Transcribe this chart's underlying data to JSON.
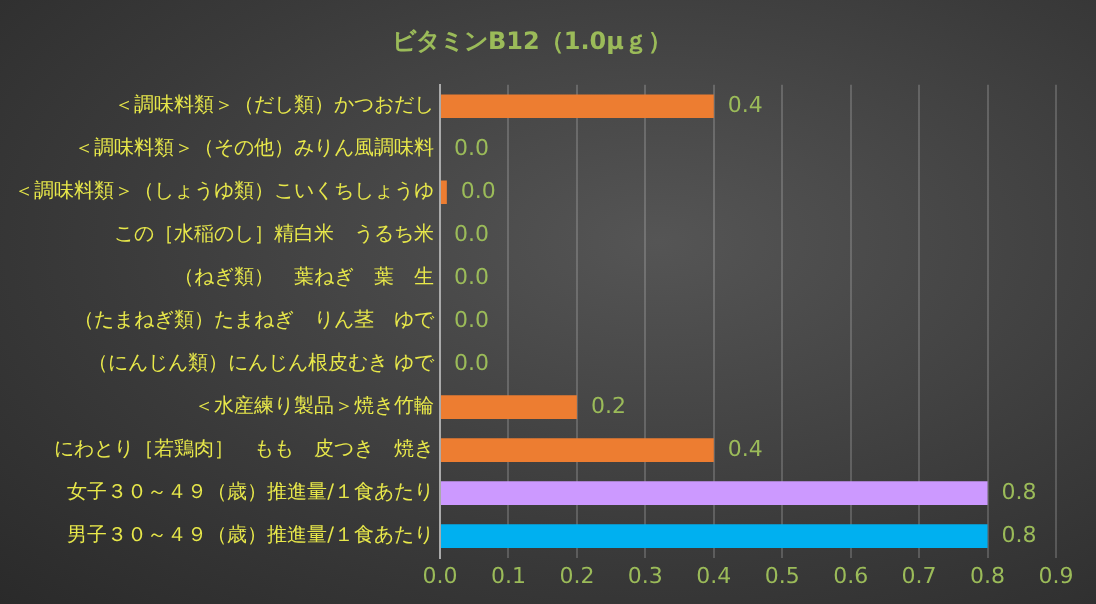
{
  "chart_data": {
    "type": "bar",
    "orientation": "horizontal",
    "title": "ビタミンB12（1.0μｇ）",
    "categories": [
      "＜調味料類＞（だし類）かつおだし",
      "＜調味料類＞（その他）みりん風調味料",
      "＜調味料類＞（しょうゆ類）こいくちしょうゆ",
      "この［水稲のし］精白米　うるち米",
      "（ねぎ類）　葉ねぎ　葉　生",
      "（たまねぎ類）たまねぎ　りん茎　ゆで",
      "（にんじん類）にんじん根皮むき ゆで",
      "＜水産練り製品＞焼き竹輪",
      "にわとり［若鶏肉］　もも　皮つき　焼き",
      "女子３０～４９（歳）推進量/１食あたり",
      "男子３０～４９（歳）推進量/１食あたり"
    ],
    "values": [
      0.4,
      0,
      0.01,
      0,
      0,
      0,
      0,
      0.2,
      0.4,
      0.8,
      0.8
    ],
    "colors": [
      "#ed7d31",
      "#ed7d31",
      "#ed7d31",
      "#ed7d31",
      "#ed7d31",
      "#ed7d31",
      "#ed7d31",
      "#ed7d31",
      "#ed7d31",
      "#cc99ff",
      "#00b0f0"
    ],
    "value_labels": [
      "0.4",
      "0.0",
      "0.0",
      "0.0",
      "0.0",
      "0.0",
      "0.0",
      "0.2",
      "0.4",
      "0.8",
      "0.8"
    ],
    "xlim": [
      0,
      0.9
    ],
    "xticks": [
      {
        "value": 0,
        "label": "0.0"
      },
      0.1,
      0.2,
      0.3,
      0.4,
      0.5,
      0.6,
      0.7,
      0.8,
      0.9
    ],
    "grid": "x",
    "legend": false
  }
}
